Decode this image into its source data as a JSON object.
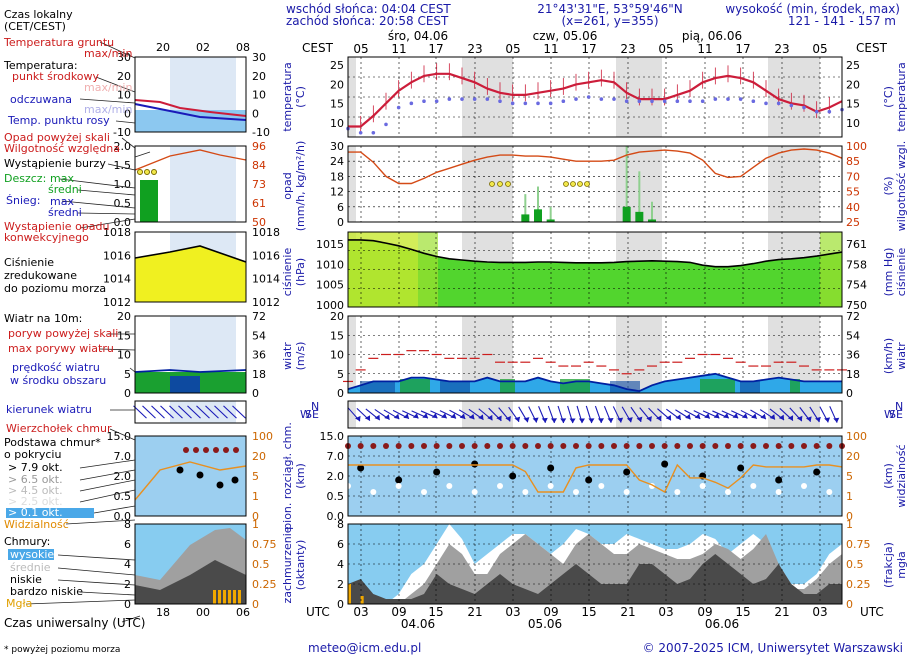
{
  "header": {
    "sunrise": "wschód słońca: 04:04 CEST",
    "sunset": "zachód słońca: 20:58 CEST",
    "coords": "21°43'31\"E, 53°59'46\"N",
    "grid": "(x=261,  y=355)",
    "elev_title": "wysokość (min, środek, max)",
    "elev_values": "121 - 141 - 157 m",
    "cest": "CEST",
    "utc": "UTC"
  },
  "days_top": [
    "śro, 04.06",
    "czw, 05.06",
    "pią, 06.06"
  ],
  "days_bottom": [
    "04.06",
    "05.06",
    "06.06"
  ],
  "ticks_top": [
    "05",
    "11",
    "17",
    "23",
    "05",
    "11",
    "17",
    "23",
    "05",
    "11",
    "17",
    "23",
    "05"
  ],
  "ticks_bottom": [
    "03",
    "09",
    "15",
    "21",
    "03",
    "09",
    "15",
    "21",
    "03",
    "09",
    "15",
    "21",
    "03"
  ],
  "legend": {
    "czas_lokalny": "Czas lokalny",
    "cet_cest": "(CET/CEST)",
    "axis_top": [
      "20",
      "02",
      "08"
    ],
    "axis_bottom": [
      "18",
      "00",
      "06"
    ],
    "czas_utc": "Czas uniwersalny (UTC)",
    "footnote": "* powyżej poziomu morza",
    "temp_gruntu": "Temperatura gruntu",
    "maxmin": "max/min",
    "temperatura": "Temperatura:",
    "punkt_srodkowy": "punkt środkowy",
    "maxmin_faded": "max/min",
    "odczuwana": "odczuwana",
    "maxmin_faded2": "max/min",
    "temp_rosy": "Temp. punktu rosy",
    "opad_powyzej": "Opad powyżej skali",
    "wilgotnosc": "Wilgotność względna",
    "burza": "Wystąpienie burzy",
    "deszcz": "Deszcz:",
    "max": "max",
    "sredni": "średni",
    "snieg": "Śnieg:",
    "max2": "max",
    "sredni2": "średni",
    "wystapienie_opadu": "Wystąpienie opadu",
    "konwekcyjnego": "konwekcyjnego",
    "cisnienie": "Ciśnienie",
    "zredukowane": "zredukowane",
    "do_poziomu": "do poziomu morza",
    "wiatr_na": "Wiatr na 10m:",
    "poryw_powyzej": "poryw powyżej skali",
    "max_porywy": "max porywy wiatru",
    "predkosc": "prędkość wiatru",
    "w_srodku": "w środku obszaru",
    "kierunek": "kierunek wiatru",
    "wierzcholek": "Wierzchołek chmur",
    "podstawa": "Podstawa chmur*",
    "o_pokryciu": "o pokryciu",
    "okt79": "> 7.9 okt.",
    "okt65": "> 6.5 okt.",
    "okt45": "> 4.5 okt.",
    "okt25": "> 2.5 okt.",
    "okt01": "> 0.1 okt.",
    "widzialnosc": "Widzialność",
    "chmury": "Chmury:",
    "wysokie": "wysokie",
    "srednie": "średnie",
    "niskie": "niskie",
    "bardzo_niskie": "bardzo niskie",
    "mgla": "Mgła",
    "p1_left": [
      "30",
      "20",
      "10",
      "0",
      "-10"
    ],
    "p1_right": [
      "30",
      "20",
      "10",
      "0",
      "-10"
    ],
    "p2_left": [
      "2.0",
      "1.5",
      "1.0",
      "0.5",
      "0.0"
    ],
    "p2_right": [
      "96",
      "84",
      "73",
      "61",
      "50"
    ],
    "p3_left": [
      "1018",
      "1016",
      "1014",
      "1012"
    ],
    "p3_right": [
      "1018",
      "1016",
      "1014",
      "1012"
    ],
    "p4_left": [
      "20",
      "15",
      "10",
      "5",
      "0"
    ],
    "p4_right": [
      "72",
      "54",
      "36",
      "18",
      "0"
    ],
    "p6_left": [
      "15.0",
      "7.0",
      "2.0",
      "0.5",
      "0.0"
    ],
    "p6_right": [
      "100",
      "20",
      "5",
      "1",
      "0"
    ],
    "p7_left": [
      "8",
      "6",
      "4",
      "2",
      "0"
    ],
    "p7_right": [
      "1",
      "0.75",
      "0.5",
      "0.25",
      "0"
    ]
  },
  "panels": {
    "temp_left": "temperatura",
    "temp_left2": "(°C)",
    "temp_right": "temperatura",
    "temp_right2": "(°C)",
    "temp_ticks": [
      "25",
      "20",
      "15",
      "10"
    ],
    "precip_left": "opad",
    "precip_left2": "(mm/h, kg/m²/h)",
    "precip_right": "wilgotność wzgl.",
    "precip_right2": "(%)",
    "precip_ticks_left": [
      "30",
      "24",
      "18",
      "12",
      "6",
      "0"
    ],
    "precip_ticks_right": [
      "100",
      "85",
      "70",
      "55",
      "40",
      "25"
    ],
    "press_left": "ciśnienie",
    "press_left2": "(hPa)",
    "press_right": "ciśnienie",
    "press_right2": "(mm Hg)",
    "press_ticks_left": [
      "1015",
      "1010",
      "1005",
      "1000"
    ],
    "press_ticks_right": [
      "761",
      "758",
      "754",
      "750"
    ],
    "wind_left": "wiatr",
    "wind_left2": "(m/s)",
    "wind_right": "wiatr",
    "wind_right2": "(km/h)",
    "wind_ticks_left": [
      "20",
      "15",
      "10",
      "5",
      "0"
    ],
    "wind_ticks_right": [
      "72",
      "54",
      "36",
      "18",
      "0"
    ],
    "dir_letters": [
      "N",
      "W",
      "E",
      "S"
    ],
    "cloud_left": "pion. rozciągł. chm.",
    "cloud_left2": "(km)",
    "cloud_right": "widzialność",
    "cloud_right2": "(km)",
    "cloud_ticks_left": [
      "15.0",
      "7.0",
      "2.0",
      "0.5",
      "0.0"
    ],
    "cloud_ticks_right": [
      "100",
      "20",
      "5",
      "1",
      "0"
    ],
    "cover_left": "zachmurzenie",
    "cover_left2": "(oktanty)",
    "cover_right": "(frakcja)",
    "cover_right2": "mgła",
    "cover_ticks_left": [
      "8",
      "6",
      "4",
      "2",
      "0"
    ],
    "cover_ticks_right": [
      "1",
      "0.75",
      "0.5",
      "0.25",
      "0"
    ]
  },
  "footer": {
    "email": "meteo@icm.edu.pl",
    "copyright": "© 2007-2025 ICM, Uniwersytet Warszawski"
  },
  "colors": {
    "temp_line": "#cc1d3a",
    "dew_point": "#6a6ae0",
    "rain": "#10a020",
    "humidity": "#d44a16",
    "pressure_fill": "#52d52e",
    "wind_fill": "#1e88e5",
    "cloud_bg": "#9ccff0",
    "sky": "#87ccf0"
  },
  "chart_data": [
    {
      "type": "line",
      "title": "temperatura",
      "ylabel": "(°C)",
      "ylim": [
        8,
        27
      ],
      "x_hours_utc_start": 0,
      "series": [
        {
          "name": "temperatura punkt środkowy",
          "values": [
            10.5,
            10.5,
            13,
            16,
            19,
            21,
            22.5,
            23,
            23,
            22,
            21,
            19.5,
            18.5,
            18,
            18,
            18.5,
            19,
            19.5,
            20.5,
            21,
            21.5,
            21,
            18.5,
            17,
            17,
            17,
            18,
            19,
            21,
            22,
            22.5,
            22,
            21,
            19,
            17,
            16,
            15.5,
            14,
            15,
            16.5
          ]
        },
        {
          "name": "temperatura punktu rosy",
          "values": [
            10,
            9,
            9,
            11,
            15,
            16,
            16.5,
            16.5,
            17,
            17,
            17,
            17,
            16.5,
            16,
            16,
            16,
            16,
            16.5,
            17,
            17.5,
            17,
            17,
            16.5,
            16.5,
            16.5,
            16.5,
            16.5,
            16.5,
            16.5,
            17,
            17,
            17,
            16.5,
            16,
            16,
            15.5,
            15,
            14,
            14,
            14.5
          ]
        }
      ]
    },
    {
      "type": "line",
      "title": "wilgotność wzgl.",
      "ylabel": "(%)",
      "ylim": [
        25,
        100
      ],
      "series": [
        {
          "name": "wilgotność względna",
          "values": [
            94,
            94,
            84,
            70,
            63,
            63,
            68,
            74,
            78,
            82,
            86,
            89,
            91,
            91,
            90,
            90,
            89,
            87,
            85,
            85,
            85,
            86,
            91,
            94,
            95,
            96,
            95,
            93,
            86,
            73,
            69,
            70,
            79,
            88,
            93,
            96,
            97,
            96,
            93,
            88
          ]
        }
      ]
    },
    {
      "type": "bar",
      "title": "opad",
      "ylabel": "(mm/h, kg/m²/h)",
      "ylim": [
        0,
        30
      ],
      "series": [
        {
          "name": "deszcz średni",
          "values": [
            0,
            0,
            0,
            0,
            0,
            0,
            0,
            0,
            0,
            0,
            0,
            0,
            0,
            0,
            3,
            5,
            1,
            0,
            0,
            0,
            0,
            0,
            6,
            4,
            1,
            0,
            0,
            0,
            0,
            0,
            0,
            0,
            0,
            0,
            0,
            0,
            0,
            0,
            0,
            0
          ]
        },
        {
          "name": "deszcz max",
          "values": [
            0,
            0,
            0,
            0,
            0,
            0,
            0,
            0,
            0,
            0,
            0,
            0,
            0,
            0,
            11,
            14,
            6,
            0,
            0,
            0,
            0,
            0,
            31,
            20,
            8,
            0,
            0,
            0,
            0,
            0,
            0,
            0,
            0,
            0,
            0,
            0,
            0,
            0,
            0,
            0
          ]
        }
      ]
    },
    {
      "type": "area",
      "title": "ciśnienie",
      "ylabel": "(hPa)",
      "ylim": [
        999,
        1018
      ],
      "series": [
        {
          "name": "ciśnienie zredukowane",
          "values": [
            1016,
            1016,
            1015.8,
            1015.2,
            1014.5,
            1013.6,
            1012.6,
            1011.8,
            1011.2,
            1010.9,
            1010.6,
            1010.4,
            1010.3,
            1010.3,
            1010.3,
            1010.4,
            1010.4,
            1010.3,
            1010.2,
            1010.2,
            1010.2,
            1010.3,
            1010.5,
            1010.6,
            1010.7,
            1010.6,
            1010.5,
            1010.3,
            1009.6,
            1009.2,
            1009.2,
            1009.5,
            1010,
            1010.6,
            1011,
            1011.2,
            1011.5,
            1011.9,
            1012.4,
            1012.9
          ]
        }
      ]
    },
    {
      "type": "line",
      "title": "wiatr",
      "ylabel": "(m/s)",
      "ylim": [
        0,
        20
      ],
      "series": [
        {
          "name": "prędkość wiatru",
          "values": [
            1,
            2,
            3,
            3,
            3,
            4,
            4,
            3.5,
            3,
            3,
            3,
            4,
            3,
            3,
            3,
            4,
            3,
            2.5,
            3,
            3,
            2.5,
            2,
            1,
            0.5,
            2,
            3,
            3.5,
            4,
            4.5,
            5,
            4,
            3,
            3,
            3.5,
            4,
            3.5,
            3,
            3,
            3,
            3
          ]
        },
        {
          "name": "max porywy wiatru",
          "values": [
            3,
            6,
            9,
            10,
            10,
            11,
            11,
            10,
            9,
            9,
            9,
            10,
            8,
            8,
            8,
            9,
            8,
            7,
            7,
            8,
            7,
            6,
            5,
            6,
            7,
            8,
            8,
            9,
            10,
            10,
            9,
            8,
            7,
            7,
            8,
            8,
            7,
            6,
            6,
            6
          ]
        }
      ]
    },
    {
      "type": "line",
      "title": "widzialność",
      "ylabel": "(km)",
      "ylim": [
        0,
        100
      ],
      "series": [
        {
          "name": "widzialność",
          "values": [
            18,
            18,
            18,
            18,
            18,
            18,
            18,
            18,
            18,
            18,
            18,
            18,
            18,
            18,
            12,
            3,
            3,
            3,
            15,
            18,
            18,
            18,
            18,
            7,
            5,
            3,
            18,
            8,
            8,
            6,
            4,
            8,
            18,
            16,
            16,
            16,
            16,
            18,
            18,
            16
          ]
        }
      ]
    },
    {
      "type": "area",
      "title": "zachmurzenie",
      "ylabel": "(oktanty)",
      "ylim": [
        0,
        8
      ],
      "series": [
        {
          "name": "wysokie",
          "values": [
            0.5,
            0.5,
            0,
            0,
            1,
            3,
            4,
            6,
            8,
            6.5,
            4,
            5,
            6,
            7,
            7,
            6,
            5,
            6,
            7.5,
            7,
            6,
            6,
            7,
            6.5,
            6,
            5.5,
            5.5,
            6,
            7,
            6.5,
            5,
            6,
            7,
            6,
            4,
            2,
            2,
            3,
            5,
            6
          ]
        },
        {
          "name": "średnie",
          "values": [
            0,
            0,
            0,
            0,
            0,
            1,
            2,
            4,
            6,
            5,
            3,
            3,
            5,
            6,
            7,
            6,
            5,
            4,
            6,
            7,
            6,
            5,
            5,
            6,
            5.5,
            5,
            4.5,
            4.5,
            5,
            6,
            5.5,
            4.5,
            5.5,
            7,
            4,
            1.5,
            1.5,
            2.5,
            4,
            5
          ]
        },
        {
          "name": "niskie",
          "values": [
            2,
            2.5,
            1,
            0.5,
            0.5,
            0.5,
            1,
            3,
            2,
            1.5,
            1,
            2,
            3,
            2,
            1.5,
            1,
            2,
            3,
            4,
            3,
            2,
            2,
            2,
            4,
            4,
            3,
            2,
            2.5,
            4,
            5,
            4,
            3,
            2,
            2.5,
            4,
            2,
            1,
            1,
            2,
            2
          ]
        },
        {
          "name": "mgła",
          "values": [
            0.25,
            0.1,
            0,
            0,
            0,
            0,
            0,
            0,
            0,
            0,
            0,
            0,
            0,
            0,
            0,
            0,
            0,
            0,
            0,
            0,
            0,
            0,
            0,
            0,
            0,
            0,
            0,
            0,
            0,
            0,
            0,
            0,
            0,
            0,
            0,
            0,
            0,
            0,
            0,
            0
          ]
        }
      ]
    }
  ]
}
